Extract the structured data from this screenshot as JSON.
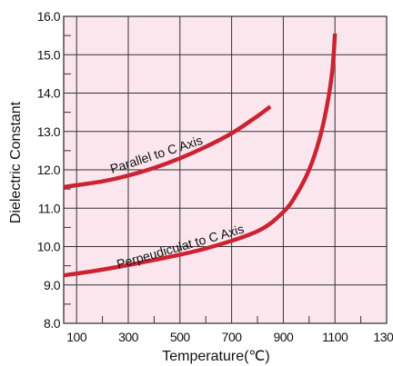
{
  "chart_data": {
    "type": "line",
    "title": "",
    "xlabel": "Temperature(℃)",
    "ylabel": "Dielectric Constant",
    "xlim": [
      50,
      1300
    ],
    "ylim": [
      8.0,
      16.0
    ],
    "grid": true,
    "background_color": "#fbe6ee",
    "line_color": "#cc2332",
    "x_ticks": [
      "100",
      "300",
      "500",
      "700",
      "900",
      "1100",
      "1300"
    ],
    "x_tick_values": [
      100,
      300,
      500,
      700,
      900,
      1100,
      1300
    ],
    "y_ticks": [
      "8.0",
      "9.0",
      "10.0",
      "11.0",
      "12.0",
      "13.0",
      "14.0",
      "15.0",
      "16.0"
    ],
    "y_tick_values": [
      8,
      9,
      10,
      11,
      12,
      13,
      14,
      15,
      16
    ],
    "series": [
      {
        "label": "Parallel to C Axis",
        "x": [
          50,
          100,
          200,
          300,
          400,
          500,
          600,
          700,
          800,
          850
        ],
        "y": [
          11.55,
          11.6,
          11.7,
          11.85,
          12.05,
          12.3,
          12.6,
          12.95,
          13.4,
          13.65
        ]
      },
      {
        "label": "Perpeudiculat to C Axis",
        "x": [
          50,
          200,
          400,
          600,
          800,
          900,
          950,
          1000,
          1040,
          1070,
          1090,
          1100
        ],
        "y": [
          9.25,
          9.4,
          9.65,
          9.95,
          10.4,
          10.9,
          11.35,
          12.0,
          12.8,
          13.7,
          14.6,
          15.55
        ]
      }
    ]
  }
}
